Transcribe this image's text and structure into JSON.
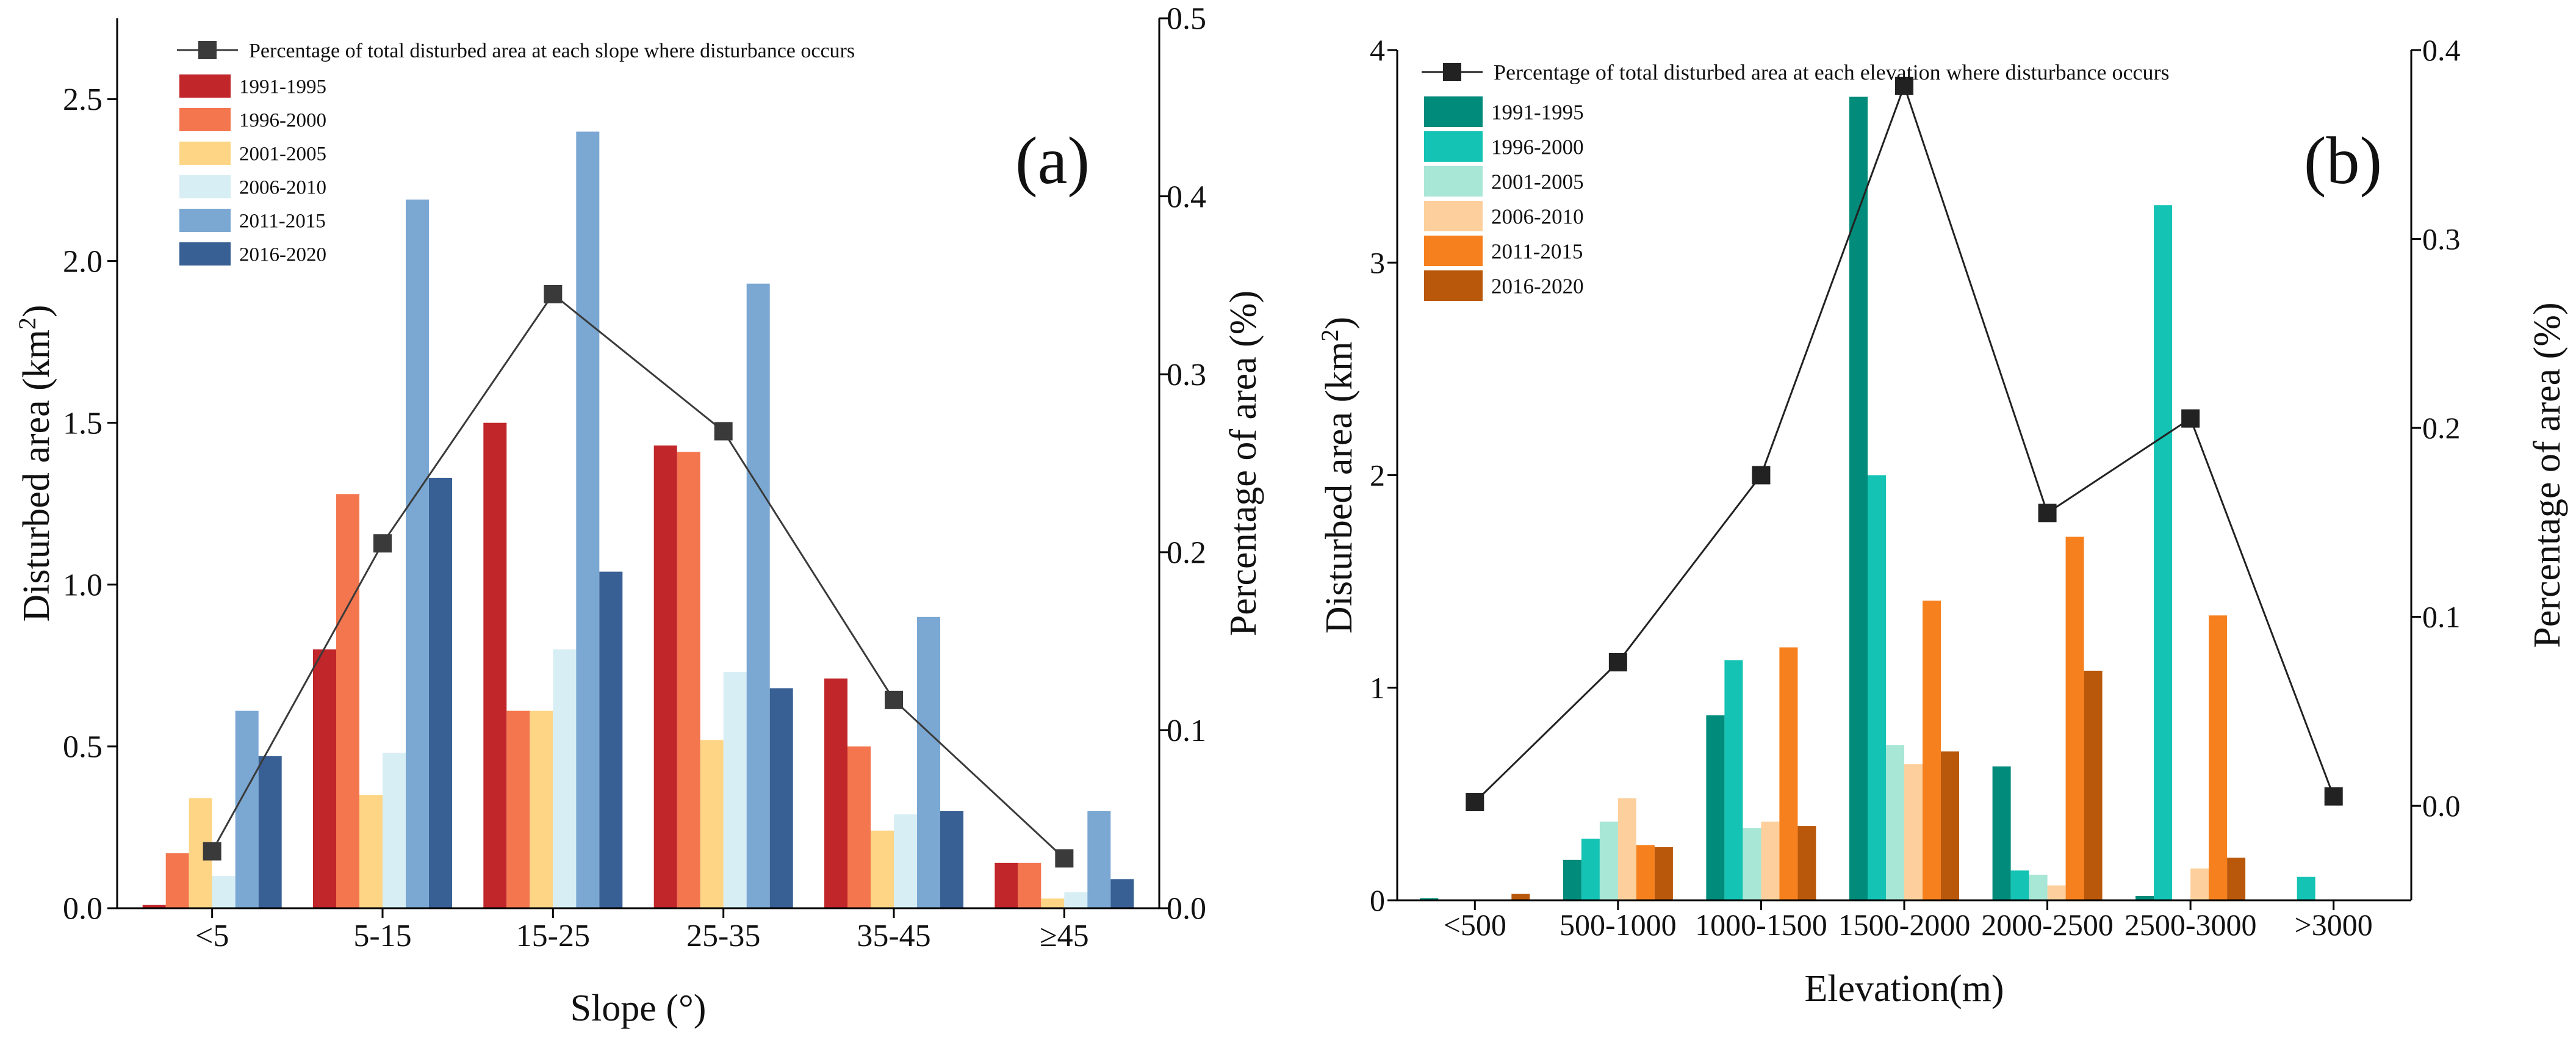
{
  "chart_data": [
    {
      "type": "bar",
      "panel_label": "(a)",
      "xlabel": "Slope (°)",
      "ylabel": "Disturbed area (km",
      "ylabel_sup": "2",
      "ylabel_close": ")",
      "y2label": "Percentage of area (%)",
      "ylim": [
        0,
        2.75
      ],
      "yticks": [
        "0.0",
        "0.5",
        "1.0",
        "1.5",
        "2.0",
        "2.5"
      ],
      "y2lim": [
        0,
        0.5
      ],
      "y2ticks": [
        "0.0",
        "0.1",
        "0.2",
        "0.3",
        "0.4",
        "0.5"
      ],
      "categories": [
        "<5",
        "5-15",
        "15-25",
        "25-35",
        "35-45",
        "≥45"
      ],
      "legend_position": "top-left",
      "series": [
        {
          "name": "1991-1995",
          "color": "#c0262a",
          "values": [
            0.01,
            0.8,
            1.5,
            1.43,
            0.71,
            0.14
          ]
        },
        {
          "name": "1996-2000",
          "color": "#f4764f",
          "values": [
            0.17,
            1.28,
            0.61,
            1.41,
            0.5,
            0.14
          ]
        },
        {
          "name": "2001-2005",
          "color": "#fdd584",
          "values": [
            0.34,
            0.35,
            0.61,
            0.52,
            0.24,
            0.03
          ]
        },
        {
          "name": "2006-2010",
          "color": "#d8eef5",
          "values": [
            0.1,
            0.48,
            0.8,
            0.73,
            0.29,
            0.05
          ]
        },
        {
          "name": "2011-2015",
          "color": "#7aa8d3",
          "values": [
            0.61,
            2.19,
            2.4,
            1.93,
            0.9,
            0.3
          ]
        },
        {
          "name": "2016-2020",
          "color": "#386095",
          "values": [
            0.47,
            1.33,
            1.04,
            0.68,
            0.3,
            0.09
          ]
        }
      ],
      "line": {
        "name": "Percentage of total disturbed area at each slope where disturbance occurs",
        "color": "#3a3a3a",
        "values": [
          0.032,
          0.205,
          0.345,
          0.268,
          0.117,
          0.028
        ]
      }
    },
    {
      "type": "bar",
      "panel_label": "(b)",
      "xlabel": "Elevation(m)",
      "ylabel": "Disturbed area (km",
      "ylabel_sup": "2",
      "ylabel_close": ")",
      "y2label": "Percentage of area (%)",
      "ylim": [
        0,
        4
      ],
      "yticks": [
        "0",
        "1",
        "2",
        "3",
        "4"
      ],
      "y2lim": [
        -0.05,
        0.4
      ],
      "y2ticks": [
        "0.0",
        "0.1",
        "0.2",
        "0.3",
        "0.4"
      ],
      "categories": [
        "<500",
        "500-1000",
        "1000-1500",
        "1500-2000",
        "2000-2500",
        "2500-3000",
        ">3000"
      ],
      "legend_position": "top-left",
      "series": [
        {
          "name": "1991-1995",
          "color": "#008b7a",
          "values": [
            0.01,
            0.19,
            0.87,
            3.78,
            0.63,
            0.02,
            0.0
          ]
        },
        {
          "name": "1996-2000",
          "color": "#14c3b4",
          "values": [
            0.0,
            0.29,
            1.13,
            2.0,
            0.14,
            3.27,
            0.11
          ]
        },
        {
          "name": "2001-2005",
          "color": "#a8e6d6",
          "values": [
            0.0,
            0.37,
            0.34,
            0.73,
            0.12,
            0.0,
            0.0
          ]
        },
        {
          "name": "2006-2010",
          "color": "#fccf9c",
          "values": [
            0.0,
            0.48,
            0.37,
            0.64,
            0.07,
            0.15,
            0.0
          ]
        },
        {
          "name": "2011-2015",
          "color": "#f6801d",
          "values": [
            0.0,
            0.26,
            1.19,
            1.41,
            1.71,
            1.34,
            0.0
          ]
        },
        {
          "name": "2016-2020",
          "color": "#b9580b",
          "values": [
            0.03,
            0.25,
            0.35,
            0.7,
            1.08,
            0.2,
            0.0
          ]
        }
      ],
      "line": {
        "name": "Percentage of total disturbed area at each elevation where disturbance occurs",
        "color": "#222222",
        "values": [
          0.002,
          0.076,
          0.175,
          0.381,
          0.155,
          0.205,
          0.005
        ]
      }
    }
  ]
}
